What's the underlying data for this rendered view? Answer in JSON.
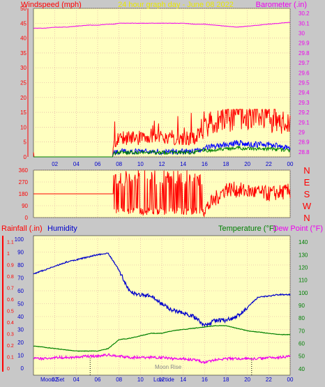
{
  "header": {
    "left_title": "Windspeed (mph)",
    "center_title": "24 hour graph day - June 08 2022",
    "right_title": "Barometer (.in)"
  },
  "lower_header": {
    "rainfall_label": "Rainfall (.in)",
    "humidity_label": "Humidity",
    "temperature_label": "Temperature (°F)",
    "dewpoint_label": "Dew Point (°F)"
  },
  "colors": {
    "background": "#c8c8c8",
    "plot_bg": "#ffffc0",
    "wind": "#ff0000",
    "gust": "#0000ff",
    "avg": "#008000",
    "barometer": "#ee00ee",
    "humidity": "#0000cc",
    "temperature": "#008000",
    "dewpoint": "#ee00ee",
    "axis_red": "#ff0000",
    "axis_blue": "#0000cc",
    "axis_green": "#008000",
    "axis_magenta": "#ee00ee"
  },
  "x_ticks": [
    "02",
    "04",
    "06",
    "08",
    "10",
    "12",
    "14",
    "16",
    "18",
    "20",
    "22",
    "00"
  ],
  "wind_y_ticks": [
    "0",
    "5",
    "10",
    "15",
    "20",
    "25",
    "30",
    "35",
    "40",
    "45",
    "50"
  ],
  "baro_y_ticks": [
    "28.8",
    "28.9",
    "29",
    "29.1",
    "29.2",
    "29.3",
    "29.4",
    "29.5",
    "29.6",
    "29.7",
    "29.8",
    "29.9",
    "30",
    "30.1",
    "30.2"
  ],
  "dir_y_ticks": [
    "0",
    "90",
    "180",
    "270",
    "360"
  ],
  "dir_compass": [
    "N",
    "W",
    "S",
    "E",
    "N"
  ],
  "rain_y_ticks": [
    "0",
    "0.1",
    "0.2",
    "0.3",
    "0.4",
    "0.5",
    "0.6",
    "0.7",
    "0.8",
    "0.9",
    "1",
    "1.1"
  ],
  "hum_y_ticks": [
    "0",
    "10",
    "20",
    "30",
    "40",
    "50",
    "60",
    "70",
    "80",
    "90",
    "100"
  ],
  "temp_y_ticks": [
    "40",
    "50",
    "60",
    "70",
    "80",
    "90",
    "100",
    "110",
    "120",
    "130",
    "140"
  ],
  "annotations": {
    "moon_set": "Moon Set",
    "moon_rise": "Moon Rise",
    "low_tide": "Low tide"
  },
  "chart_data": [
    {
      "type": "line",
      "title": "24 hour graph day - June 08 2022",
      "ylabel": "Windspeed (mph)",
      "y2label": "Barometer (.in)",
      "ylim": [
        0,
        50
      ],
      "y2lim": [
        28.75,
        30.25
      ],
      "x_hours": [
        0,
        1,
        2,
        3,
        4,
        5,
        6,
        7,
        7.5,
        8,
        9,
        10,
        11,
        12,
        13,
        14,
        15,
        16,
        17,
        18,
        19,
        20,
        21,
        22,
        23,
        24
      ],
      "series": [
        {
          "name": "Windspeed",
          "values": [
            0,
            0,
            0,
            0,
            0,
            0,
            0,
            0,
            2,
            3,
            3,
            3,
            3,
            3,
            3,
            3,
            3,
            5,
            6,
            7,
            8,
            7,
            7,
            7,
            6,
            5
          ]
        },
        {
          "name": "Barometer",
          "values": [
            30.05,
            30.05,
            30.06,
            30.06,
            30.07,
            30.08,
            30.08,
            30.09,
            30.09,
            30.1,
            30.1,
            30.1,
            30.1,
            30.1,
            30.1,
            30.1,
            30.09,
            30.09,
            30.08,
            30.07,
            30.06,
            30.07,
            30.08,
            30.09,
            30.1,
            30.11
          ]
        }
      ]
    },
    {
      "type": "line",
      "ylabel": "Wind direction",
      "ylim": [
        0,
        360
      ],
      "x_hours": [
        0,
        7.5,
        8,
        10,
        12,
        14,
        16,
        18,
        20,
        22,
        24
      ],
      "series": [
        {
          "name": "Direction",
          "values": [
            180,
            180,
            0,
            270,
            250,
            240,
            60,
            220,
            200,
            180,
            200
          ]
        }
      ]
    },
    {
      "type": "line",
      "ylabel": "Rainfall (.in) / Humidity",
      "y2label": "Temperature (°F) / Dew Point (°F)",
      "ylim": [
        0,
        100
      ],
      "y2lim": [
        35,
        145
      ],
      "x_hours": [
        0,
        1,
        2,
        3,
        4,
        5,
        6,
        7,
        8,
        9,
        10,
        11,
        12,
        13,
        14,
        15,
        16,
        17,
        18,
        19,
        20,
        21,
        22,
        23,
        24
      ],
      "series": [
        {
          "name": "Humidity",
          "values": [
            73,
            76,
            79,
            82,
            84,
            86,
            88,
            89,
            76,
            59,
            57,
            56,
            50,
            45,
            43,
            40,
            33,
            37,
            37,
            40,
            47,
            55,
            56,
            57,
            57
          ]
        },
        {
          "name": "Temperature",
          "values": [
            58,
            57,
            56,
            55,
            54,
            54,
            54,
            56,
            63,
            64,
            66,
            68,
            68,
            70,
            71,
            72,
            73,
            74,
            74,
            72,
            70,
            69,
            68,
            67,
            67
          ]
        },
        {
          "name": "Dew Point",
          "values": [
            48,
            48,
            49,
            49,
            49,
            50,
            50,
            51,
            50,
            49,
            49,
            49,
            49,
            48,
            48,
            47,
            45,
            47,
            48,
            48,
            48,
            48,
            49,
            49,
            50
          ]
        }
      ]
    }
  ]
}
